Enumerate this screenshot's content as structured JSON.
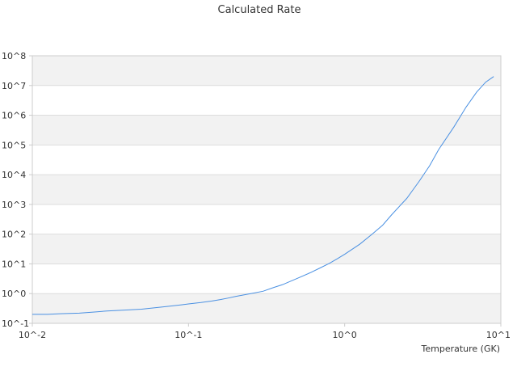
{
  "chart_data": {
    "type": "line",
    "title": "Calculated Rate",
    "xlabel": "Temperature (GK)",
    "ylabel": "",
    "x_scale": "log",
    "y_scale": "log",
    "xlim": [
      0.01,
      10
    ],
    "ylim": [
      0.1,
      100000000
    ],
    "grid": "alternating-horizontal-bands",
    "legend": "none",
    "x_ticks": [
      {
        "value": 0.01,
        "base": "10",
        "exp": "^-2"
      },
      {
        "value": 0.1,
        "base": "10",
        "exp": "^-1"
      },
      {
        "value": 1,
        "base": "10",
        "exp": "^0"
      },
      {
        "value": 10,
        "base": "10",
        "exp": "^1"
      }
    ],
    "y_ticks": [
      {
        "value": 0.1,
        "base": "10",
        "exp": "^-1"
      },
      {
        "value": 1,
        "base": "10",
        "exp": "^0"
      },
      {
        "value": 10,
        "base": "10",
        "exp": "^1"
      },
      {
        "value": 100,
        "base": "10",
        "exp": "^2"
      },
      {
        "value": 1000,
        "base": "10",
        "exp": "^3"
      },
      {
        "value": 10000,
        "base": "10",
        "exp": "^4"
      },
      {
        "value": 100000,
        "base": "10",
        "exp": "^5"
      },
      {
        "value": 1000000,
        "base": "10",
        "exp": "^6"
      },
      {
        "value": 10000000,
        "base": "10",
        "exp": "^7"
      },
      {
        "value": 100000000,
        "base": "10",
        "exp": "^8"
      }
    ],
    "series": [
      {
        "color": "#4a90e2",
        "x": [
          0.01,
          0.0125,
          0.015,
          0.02,
          0.025,
          0.03,
          0.04,
          0.05,
          0.06,
          0.07,
          0.08,
          0.09,
          0.1,
          0.12,
          0.14,
          0.16,
          0.18,
          0.2,
          0.25,
          0.3,
          0.35,
          0.4,
          0.45,
          0.5,
          0.6,
          0.7,
          0.8,
          0.9,
          1.0,
          1.25,
          1.5,
          1.75,
          2.0,
          2.5,
          3.0,
          3.5,
          4.0,
          5.0,
          6.0,
          7.0,
          8.0,
          9.0
        ],
        "y": [
          0.2,
          0.2,
          0.21,
          0.22,
          0.24,
          0.26,
          0.28,
          0.3,
          0.33,
          0.36,
          0.39,
          0.42,
          0.45,
          0.5,
          0.56,
          0.63,
          0.71,
          0.8,
          1.0,
          1.2,
          1.6,
          2.0,
          2.6,
          3.3,
          5.0,
          7.4,
          10.5,
          15.0,
          21.0,
          46.0,
          100.0,
          200.0,
          450.0,
          1600.0,
          6000.0,
          20000.0,
          70000.0,
          400000.0,
          1900000.0,
          6000000.0,
          13000000.0,
          20000000.0
        ]
      }
    ]
  }
}
